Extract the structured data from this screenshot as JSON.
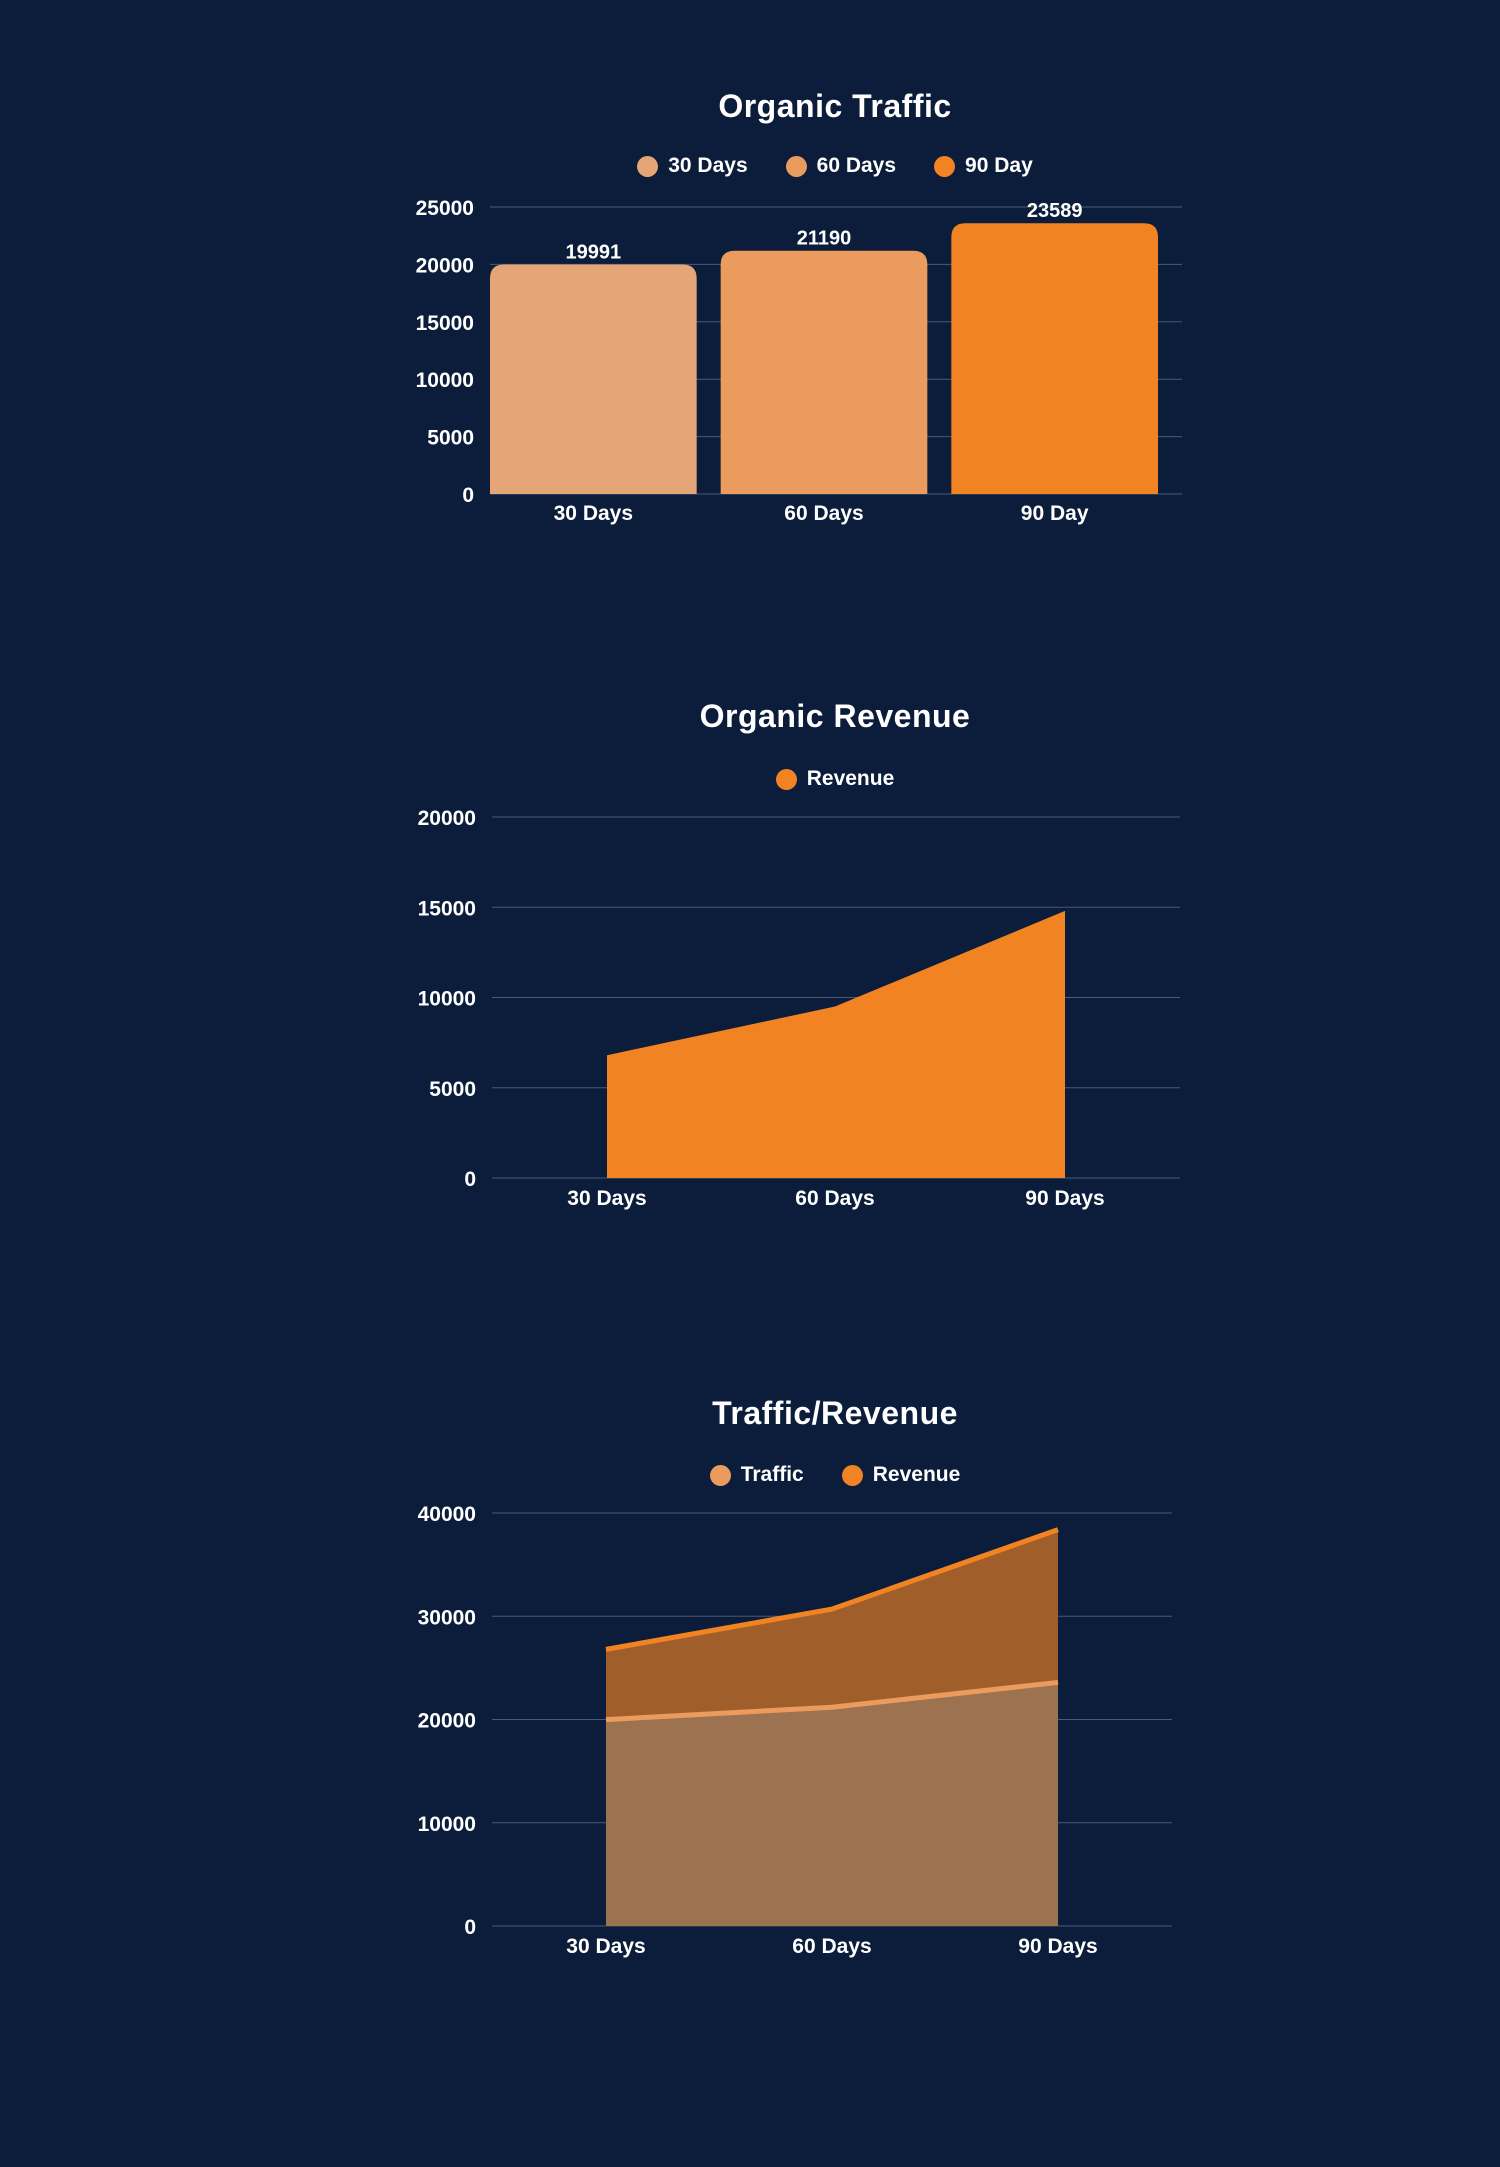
{
  "colors": {
    "background": "#0b1d3a",
    "traffic_30": "#e5a677",
    "traffic_60": "#eb9b5d",
    "traffic_90": "#f28322",
    "revenue": "#f28322",
    "traffic_line": "#eb9b5d",
    "grid": "#4a5a74"
  },
  "chart_data": [
    {
      "type": "bar",
      "title": "Organic Traffic",
      "legend": [
        "30 Days",
        "60 Days",
        "90 Day"
      ],
      "categories": [
        "30 Days",
        "60 Days",
        "90 Day"
      ],
      "values": [
        19991,
        21190,
        23589
      ],
      "data_labels": [
        "19991",
        "21190",
        "23589"
      ],
      "yticks": [
        "0",
        "5000",
        "10000",
        "15000",
        "20000",
        "25000"
      ],
      "ylim": [
        0,
        25000
      ],
      "grid": true,
      "legend_position": "top-center"
    },
    {
      "type": "area",
      "title": "Organic Revenue",
      "legend": [
        "Revenue"
      ],
      "categories": [
        "30 Days",
        "60 Days",
        "90 Days"
      ],
      "series": [
        {
          "name": "Revenue",
          "values": [
            6800,
            9500,
            14800
          ]
        }
      ],
      "yticks": [
        "0",
        "5000",
        "10000",
        "15000",
        "20000"
      ],
      "ylim": [
        0,
        20000
      ],
      "grid": true,
      "legend_position": "top-center"
    },
    {
      "type": "area",
      "title": "Traffic/Revenue",
      "legend": [
        "Traffic",
        "Revenue"
      ],
      "categories": [
        "30 Days",
        "60 Days",
        "90 Days"
      ],
      "series": [
        {
          "name": "Traffic",
          "values": [
            19991,
            21190,
            23589
          ]
        },
        {
          "name": "Revenue",
          "values": [
            6800,
            9500,
            14800
          ]
        }
      ],
      "stacked": true,
      "yticks": [
        "0",
        "10000",
        "20000",
        "30000",
        "40000"
      ],
      "ylim": [
        0,
        40000
      ],
      "grid": true,
      "legend_position": "top-center"
    }
  ]
}
